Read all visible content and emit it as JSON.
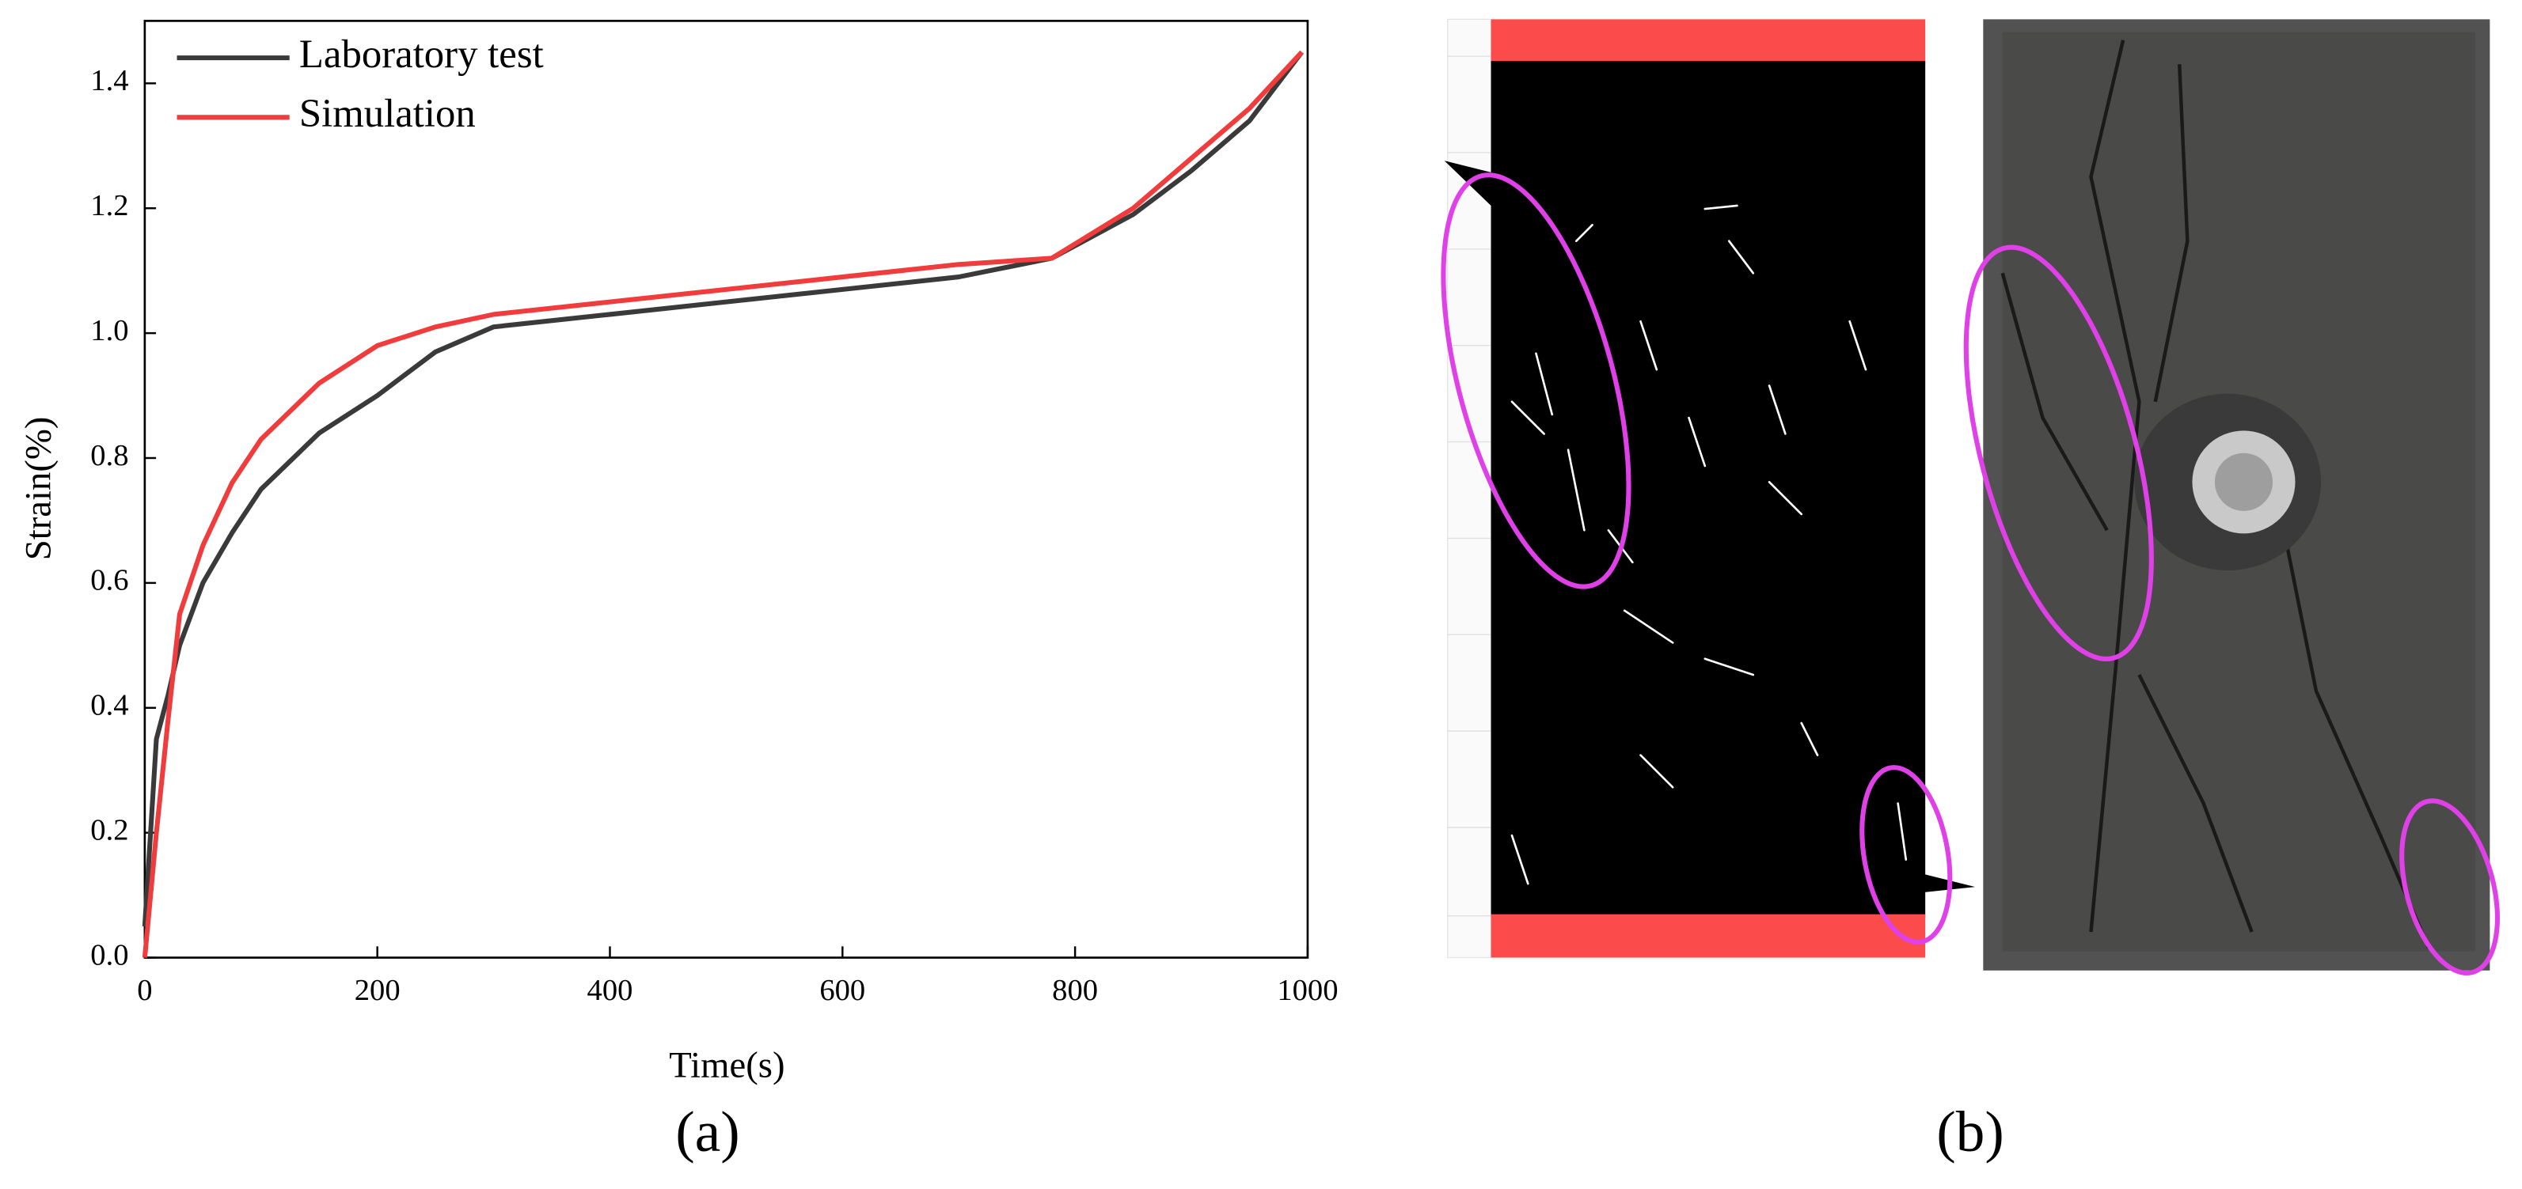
{
  "chart_data": {
    "type": "line",
    "x_label": "Time(s)",
    "y_label": "Strain(%)",
    "x": [
      0,
      10,
      20,
      30,
      50,
      75,
      100,
      150,
      200,
      250,
      300,
      400,
      500,
      600,
      700,
      780,
      850,
      900,
      950,
      995
    ],
    "series": [
      {
        "name": "Laboratory test",
        "color": "#3a3a3a",
        "values": [
          0.05,
          0.35,
          0.42,
          0.5,
          0.6,
          0.68,
          0.75,
          0.84,
          0.9,
          0.97,
          1.01,
          1.03,
          1.05,
          1.07,
          1.09,
          1.12,
          1.19,
          1.26,
          1.34,
          1.45
        ]
      },
      {
        "name": "Simulation",
        "color": "#f03c3c",
        "values": [
          0,
          0.2,
          0.38,
          0.55,
          0.66,
          0.76,
          0.83,
          0.92,
          0.98,
          1.01,
          1.03,
          1.05,
          1.07,
          1.09,
          1.11,
          1.12,
          1.2,
          1.28,
          1.36,
          1.45
        ]
      }
    ],
    "xlim": [
      0,
      1000
    ],
    "ylim": [
      0,
      1.5
    ],
    "xticks": [
      0,
      200,
      400,
      600,
      800,
      1000
    ],
    "yticks": [
      {
        "value": 0,
        "label": "0.0"
      },
      0.2,
      0.4,
      0.6,
      0.8,
      {
        "value": 1,
        "label": "1.0"
      },
      1.2,
      1.4
    ],
    "legend": "upper-left"
  },
  "panel_labels": [
    "(a)",
    "(b)"
  ]
}
